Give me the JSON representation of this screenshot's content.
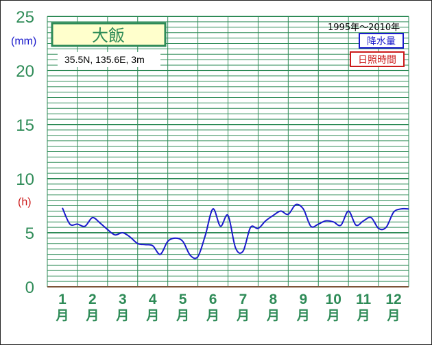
{
  "chart_data": {
    "type": "line",
    "station": "大飯",
    "coordinates": "35.5N,  135.6E,  3m",
    "period": "1995年〜2010年",
    "y_unit_rain": "(mm)",
    "y_unit_sun": "(h)",
    "ylim": [
      0,
      25
    ],
    "yticks": [
      "0",
      "5",
      "10",
      "15",
      "20",
      "25"
    ],
    "grid": true,
    "legend": [
      "降水量",
      "日照時間"
    ],
    "legend_position": "top-right",
    "colors": {
      "grid": "#2e8b57",
      "precipitation": "#1a1acc",
      "sunshine": "#cc1a1a"
    },
    "month_labels": [
      "1",
      "2",
      "3",
      "4",
      "5",
      "6",
      "7",
      "8",
      "9",
      "10",
      "11",
      "12"
    ],
    "month_suffix": "月",
    "series": [
      {
        "name": "降水量",
        "x": [
          1,
          1.25,
          1.5,
          1.75,
          2,
          2.25,
          2.5,
          2.75,
          3,
          3.25,
          3.5,
          3.75,
          4,
          4.25,
          4.5,
          4.75,
          5,
          5.25,
          5.5,
          5.75,
          6,
          6.25,
          6.5,
          6.75,
          7,
          7.25,
          7.5,
          7.75,
          8,
          8.25,
          8.5,
          8.75,
          9,
          9.25,
          9.5,
          9.75,
          10,
          10.25,
          10.5,
          10.75,
          11,
          11.25,
          11.5,
          11.75,
          12,
          12.25,
          12.5
        ],
        "values": [
          7.3,
          5.8,
          5.8,
          5.6,
          6.4,
          5.9,
          5.3,
          4.8,
          5.0,
          4.6,
          4.0,
          3.9,
          3.8,
          3.0,
          4.2,
          4.5,
          4.2,
          2.9,
          2.8,
          4.8,
          7.2,
          5.6,
          6.6,
          3.6,
          3.3,
          5.5,
          5.4,
          6.1,
          6.6,
          7.0,
          6.7,
          7.6,
          7.2,
          5.6,
          5.8,
          6.1,
          6.0,
          5.7,
          7.0,
          5.7,
          6.1,
          6.4,
          5.4,
          5.5,
          6.9,
          7.2,
          7.2
        ]
      }
    ]
  }
}
